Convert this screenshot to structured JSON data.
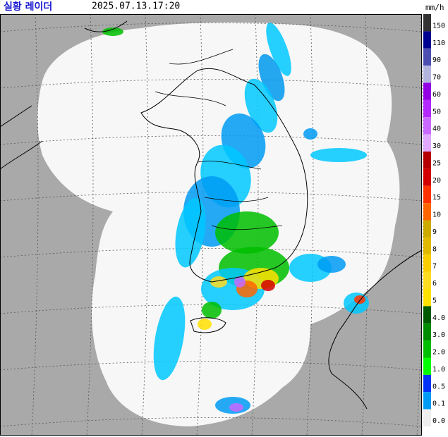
{
  "header": {
    "title": "실황 레이더",
    "timestamp": "2025.07.13.17:20",
    "unit": "mm/h"
  },
  "legend": [
    {
      "label": "150",
      "color": "#333333"
    },
    {
      "label": "110",
      "color": "#000390"
    },
    {
      "label": "90",
      "color": "#4c4eb1"
    },
    {
      "label": "70",
      "color": "#b3b4de"
    },
    {
      "label": "60",
      "color": "#9300e4"
    },
    {
      "label": "50",
      "color": "#b329ff"
    },
    {
      "label": "40",
      "color": "#c969ff"
    },
    {
      "label": "30",
      "color": "#e0a9ff"
    },
    {
      "label": "25",
      "color": "#b40000"
    },
    {
      "label": "20",
      "color": "#d20000"
    },
    {
      "label": "15",
      "color": "#ff3200"
    },
    {
      "label": "10",
      "color": "#ff6600"
    },
    {
      "label": "9",
      "color": "#ccaa00"
    },
    {
      "label": "8",
      "color": "#e0b900"
    },
    {
      "label": "7",
      "color": "#f9cd00"
    },
    {
      "label": "6",
      "color": "#ffdc1f"
    },
    {
      "label": "5",
      "color": "#ffe100"
    },
    {
      "label": "4.0",
      "color": "#005a00"
    },
    {
      "label": "3.0",
      "color": "#008c00"
    },
    {
      "label": "2.0",
      "color": "#00be00"
    },
    {
      "label": "1.0",
      "color": "#00ff00"
    },
    {
      "label": "0.5",
      "color": "#0033f5"
    },
    {
      "label": "0.1",
      "color": "#009bf5"
    },
    {
      "label": "0.0",
      "color": "#eeeeee"
    }
  ]
}
